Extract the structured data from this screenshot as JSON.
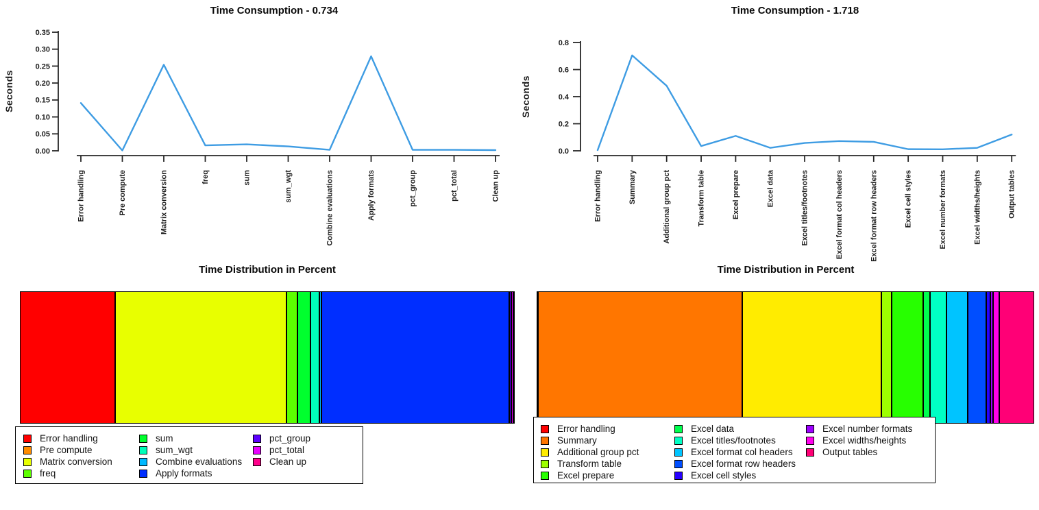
{
  "chart_data": [
    {
      "id": "time-consumption-left",
      "type": "line",
      "title": "Time Consumption - 0.734",
      "total_seconds": 0.734,
      "ylabel": "Seconds",
      "ylim": [
        0,
        0.35
      ],
      "y_ticks": [
        "0.00",
        "0.05",
        "0.10",
        "0.15",
        "0.20",
        "0.25",
        "0.30",
        "0.35"
      ],
      "grid": false,
      "categories": [
        "Error handling",
        "Pre compute",
        "Matrix conversion",
        "freq",
        "sum",
        "sum_wgt",
        "Combine evaluations",
        "Apply formats",
        "pct_group",
        "pct_total",
        "Clean up"
      ],
      "values": [
        0.141,
        0.001,
        0.254,
        0.016,
        0.019,
        0.013,
        0.003,
        0.279,
        0.003,
        0.003,
        0.002
      ],
      "line_color": "#3E9CE3"
    },
    {
      "id": "time-consumption-right",
      "type": "line",
      "title": "Time Consumption - 1.718",
      "total_seconds": 1.718,
      "ylabel": "Seconds",
      "ylim": [
        0,
        0.8
      ],
      "y_ticks": [
        "0.0",
        "0.2",
        "0.4",
        "0.6",
        "0.8"
      ],
      "grid": false,
      "categories": [
        "Error handling",
        "Summary",
        "Additional group pct",
        "Transform table",
        "Excel prepare",
        "Excel data",
        "Excel titles/footnotes",
        "Excel format col headers",
        "Excel format row headers",
        "Excel cell styles",
        "Excel number formats",
        "Excel widths/heights",
        "Output tables"
      ],
      "values": [
        0.005,
        0.705,
        0.48,
        0.035,
        0.11,
        0.022,
        0.058,
        0.072,
        0.066,
        0.012,
        0.011,
        0.022,
        0.12
      ],
      "line_color": "#3E9CE3"
    },
    {
      "id": "time-distribution-left",
      "type": "bar",
      "subtype": "stacked-horizontal",
      "title": "Time Distribution in Percent",
      "categories": [
        "Error handling",
        "Pre compute",
        "Matrix conversion",
        "freq",
        "sum",
        "sum_wgt",
        "Combine evaluations",
        "Apply formats",
        "pct_group",
        "pct_total",
        "Clean up"
      ],
      "values_percent": [
        19.2,
        0.1,
        34.6,
        2.2,
        2.6,
        1.8,
        0.4,
        38.0,
        0.4,
        0.4,
        0.3
      ],
      "colors": [
        "#FF0000",
        "#FF8B00",
        "#E8FF00",
        "#5DFF00",
        "#00FF2E",
        "#00FFB9",
        "#00B9FF",
        "#002EFF",
        "#5D00FF",
        "#E800FF",
        "#FF008B"
      ],
      "legend_position": "bottom-left",
      "legend_columns": [
        [
          0,
          1,
          2,
          3
        ],
        [
          4,
          5,
          6,
          7
        ],
        [
          8,
          9,
          10
        ]
      ]
    },
    {
      "id": "time-distribution-right",
      "type": "bar",
      "subtype": "stacked-horizontal",
      "title": "Time Distribution in Percent",
      "categories": [
        "Error handling",
        "Summary",
        "Additional group pct",
        "Transform table",
        "Excel prepare",
        "Excel data",
        "Excel titles/footnotes",
        "Excel format col headers",
        "Excel format row headers",
        "Excel cell styles",
        "Excel number formats",
        "Excel widths/heights",
        "Output tables"
      ],
      "values_percent": [
        0.3,
        41.0,
        27.9,
        2.0,
        6.4,
        1.3,
        3.4,
        4.2,
        3.8,
        0.7,
        0.6,
        1.3,
        7.0
      ],
      "colors": [
        "#FF0000",
        "#FF7600",
        "#FFEC00",
        "#9DFF00",
        "#27FF00",
        "#00FF4E",
        "#00FFC4",
        "#00C4FF",
        "#004EFF",
        "#2700FF",
        "#9D00FF",
        "#FF00EC",
        "#FF0076"
      ],
      "legend_position": "bottom-left",
      "legend_columns": [
        [
          0,
          1,
          2,
          3,
          4
        ],
        [
          5,
          6,
          7,
          8,
          9
        ],
        [
          10,
          11,
          12
        ]
      ]
    }
  ]
}
